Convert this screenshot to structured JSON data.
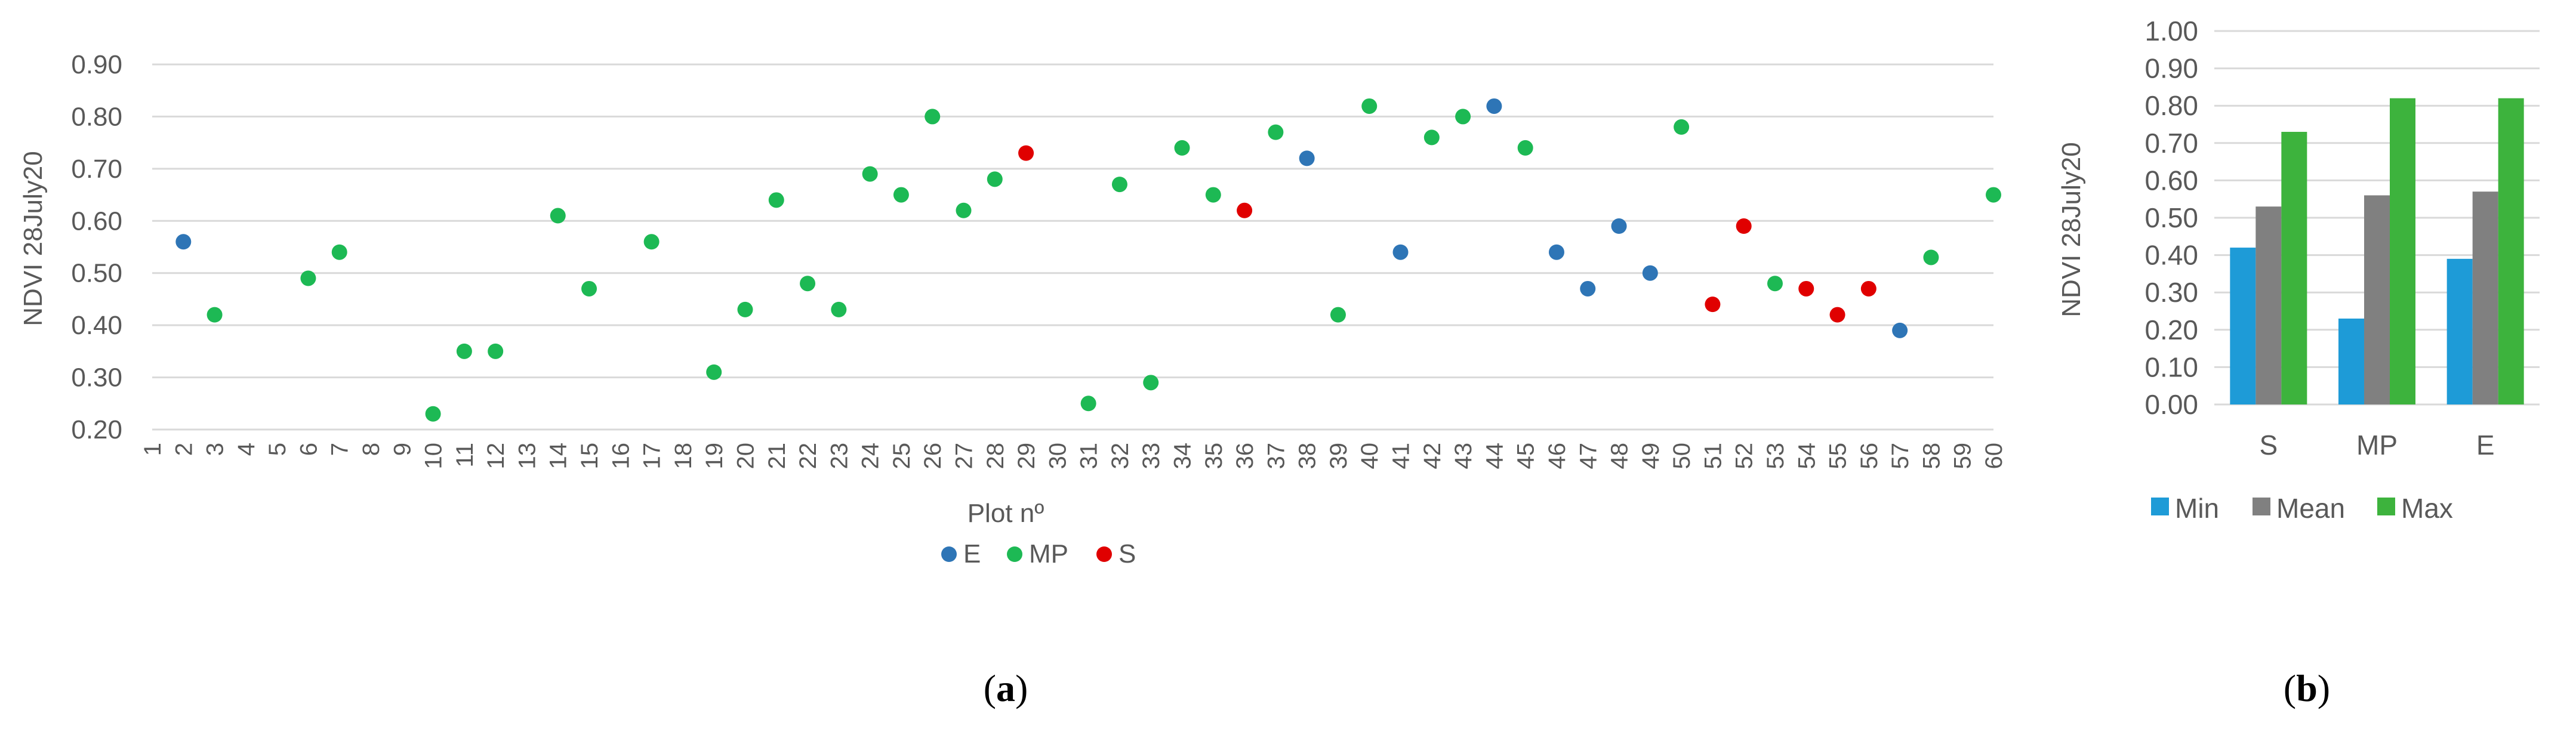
{
  "chart_data": [
    {
      "type": "scatter",
      "panel_label": "(a)",
      "panel_letter": "a",
      "title": "",
      "xlabel": "Plot nº",
      "ylabel": "NDVI 28July20",
      "ylim": [
        0.2,
        0.9
      ],
      "yticks": [
        "0.20",
        "0.30",
        "0.40",
        "0.50",
        "0.60",
        "0.70",
        "0.80",
        "0.90"
      ],
      "xlim": [
        1,
        60
      ],
      "xticks": [
        "1",
        "2",
        "3",
        "4",
        "5",
        "6",
        "7",
        "8",
        "9",
        "10",
        "11",
        "12",
        "13",
        "14",
        "15",
        "16",
        "17",
        "18",
        "19",
        "20",
        "21",
        "22",
        "23",
        "24",
        "25",
        "26",
        "27",
        "28",
        "29",
        "30",
        "31",
        "32",
        "33",
        "34",
        "35",
        "36",
        "37",
        "38",
        "39",
        "40",
        "41",
        "42",
        "43",
        "44",
        "45",
        "46",
        "47",
        "48",
        "49",
        "50",
        "51",
        "52",
        "53",
        "54",
        "55",
        "56",
        "57",
        "58",
        "59",
        "60"
      ],
      "grid": true,
      "legend_position": "bottom",
      "series": [
        {
          "name": "E",
          "color": "#2E75B6",
          "x": [
            2,
            38,
            41,
            44,
            46,
            47,
            48,
            49,
            57
          ],
          "y": [
            0.56,
            0.72,
            0.54,
            0.82,
            0.54,
            0.47,
            0.59,
            0.5,
            0.39
          ]
        },
        {
          "name": "MP",
          "color": "#1DB954",
          "x": [
            3,
            6,
            7,
            10,
            11,
            12,
            14,
            15,
            17,
            19,
            20,
            21,
            22,
            23,
            24,
            25,
            26,
            27,
            28,
            31,
            32,
            33,
            34,
            35,
            37,
            39,
            40,
            42,
            43,
            45,
            50,
            53,
            58,
            60
          ],
          "y": [
            0.42,
            0.49,
            0.54,
            0.23,
            0.35,
            0.35,
            0.61,
            0.47,
            0.56,
            0.31,
            0.43,
            0.64,
            0.48,
            0.43,
            0.69,
            0.65,
            0.8,
            0.62,
            0.68,
            0.25,
            0.67,
            0.29,
            0.74,
            0.65,
            0.77,
            0.42,
            0.82,
            0.76,
            0.8,
            0.74,
            0.78,
            0.48,
            0.53,
            0.65
          ]
        },
        {
          "name": "S",
          "color": "#E00000",
          "x": [
            29,
            36,
            51,
            52,
            54,
            55,
            56
          ],
          "y": [
            0.73,
            0.62,
            0.44,
            0.59,
            0.47,
            0.42,
            0.47
          ]
        }
      ]
    },
    {
      "type": "bar",
      "panel_label": "(b)",
      "panel_letter": "b",
      "title": "",
      "xlabel": "",
      "ylabel": "NDVI 28July20",
      "ylim": [
        0,
        1.0
      ],
      "yticks": [
        "0.00",
        "0.10",
        "0.20",
        "0.30",
        "0.40",
        "0.50",
        "0.60",
        "0.70",
        "0.80",
        "0.90",
        "1.00"
      ],
      "categories": [
        "S",
        "MP",
        "E"
      ],
      "grid": true,
      "legend_position": "bottom",
      "series": [
        {
          "name": "Min",
          "color": "#1E9BD7",
          "values": [
            0.42,
            0.23,
            0.39
          ]
        },
        {
          "name": "Mean",
          "color": "#808080",
          "values": [
            0.53,
            0.56,
            0.57
          ]
        },
        {
          "name": "Max",
          "color": "#3DB33D",
          "values": [
            0.73,
            0.82,
            0.82
          ]
        }
      ]
    }
  ]
}
